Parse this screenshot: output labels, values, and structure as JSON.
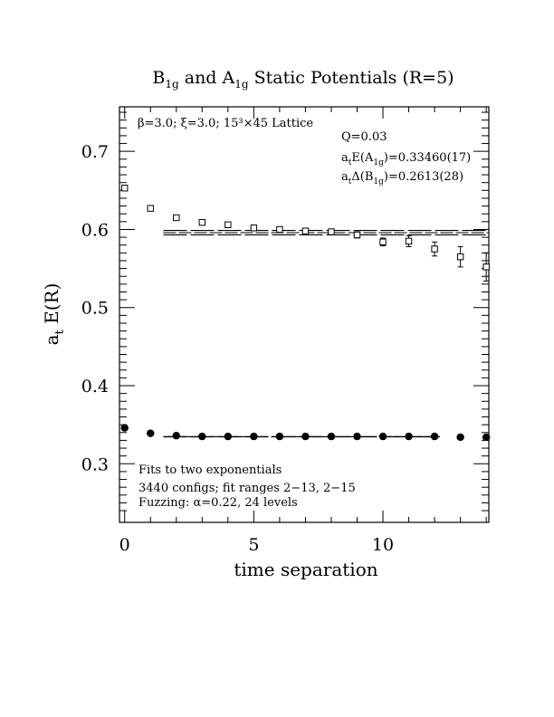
{
  "chart_data": {
    "type": "scatter",
    "title": {
      "parts": [
        {
          "text": "B",
          "sub": "1g"
        },
        {
          "text": " and A",
          "sub": "1g"
        },
        {
          "text": " Static Potentials (R=5)",
          "sub": ""
        }
      ]
    },
    "xlabel": "time separation",
    "ylabel": {
      "main": "a",
      "sub": "t",
      "rest": " E(R)"
    },
    "xlim": [
      -0.2,
      14.1
    ],
    "ylim": [
      0.225,
      0.757
    ],
    "xticks": [
      0,
      5,
      10
    ],
    "yticks": [
      0.3,
      0.4,
      0.5,
      0.6,
      0.7
    ],
    "ytick_labels": [
      "0.3",
      "0.4",
      "0.5",
      "0.6",
      "0.7"
    ],
    "xtick_labels": [
      "0",
      "5",
      "10"
    ],
    "annotations": {
      "lattice": "β=3.0; ξ=3.0; 15³×45 Lattice",
      "q": "Q=0.03",
      "ea1g": {
        "pre": "a",
        "sub1": "t",
        "mid": "E(A",
        "sub2": "1g",
        "post": ")=0.33460(17)"
      },
      "db1g": {
        "pre": "a",
        "sub1": "t",
        "mid": "Δ(B",
        "sub2": "1g",
        "post": ")=0.2613(28)"
      },
      "fits": "Fits to two exponentials",
      "configs": "3440 configs; fit ranges 2−13, 2−15",
      "fuzzing": "Fuzzing: α=0.22, 24 levels"
    },
    "series": [
      {
        "name": "B1g",
        "marker": "open-square",
        "x": [
          0,
          1,
          2,
          3,
          4,
          5,
          6,
          7,
          8,
          9,
          10,
          11,
          12,
          13,
          14
        ],
        "y": [
          0.653,
          0.627,
          0.615,
          0.609,
          0.606,
          0.602,
          0.6,
          0.598,
          0.597,
          0.593,
          0.584,
          0.585,
          0.575,
          0.565,
          0.552
        ],
        "err": [
          0.003,
          0.002,
          0.002,
          0.002,
          0.002,
          0.002,
          0.002,
          0.002,
          0.003,
          0.004,
          0.005,
          0.007,
          0.009,
          0.013,
          0.018
        ]
      },
      {
        "name": "A1g",
        "marker": "filled-circle",
        "x": [
          0,
          1,
          2,
          3,
          4,
          5,
          6,
          7,
          8,
          9,
          10,
          11,
          12,
          13,
          14
        ],
        "y": [
          0.346,
          0.339,
          0.336,
          0.335,
          0.335,
          0.335,
          0.335,
          0.335,
          0.335,
          0.335,
          0.335,
          0.335,
          0.335,
          0.334,
          0.334
        ],
        "err": [
          0.001,
          0.001,
          0.001,
          0.001,
          0.001,
          0.001,
          0.001,
          0.001,
          0.001,
          0.001,
          0.001,
          0.001,
          0.001,
          0.002,
          0.002
        ]
      }
    ],
    "fit_bands": [
      {
        "name": "B1g fit",
        "x_range": [
          1.5,
          14.1
        ],
        "center": 0.5959,
        "upper": 0.5987,
        "lower": 0.5931
      },
      {
        "name": "A1g fit",
        "x_range": [
          1.5,
          12.2
        ],
        "center": 0.3346,
        "upper": 0.33477,
        "lower": 0.33443
      }
    ],
    "grid": false,
    "legend": "none"
  }
}
